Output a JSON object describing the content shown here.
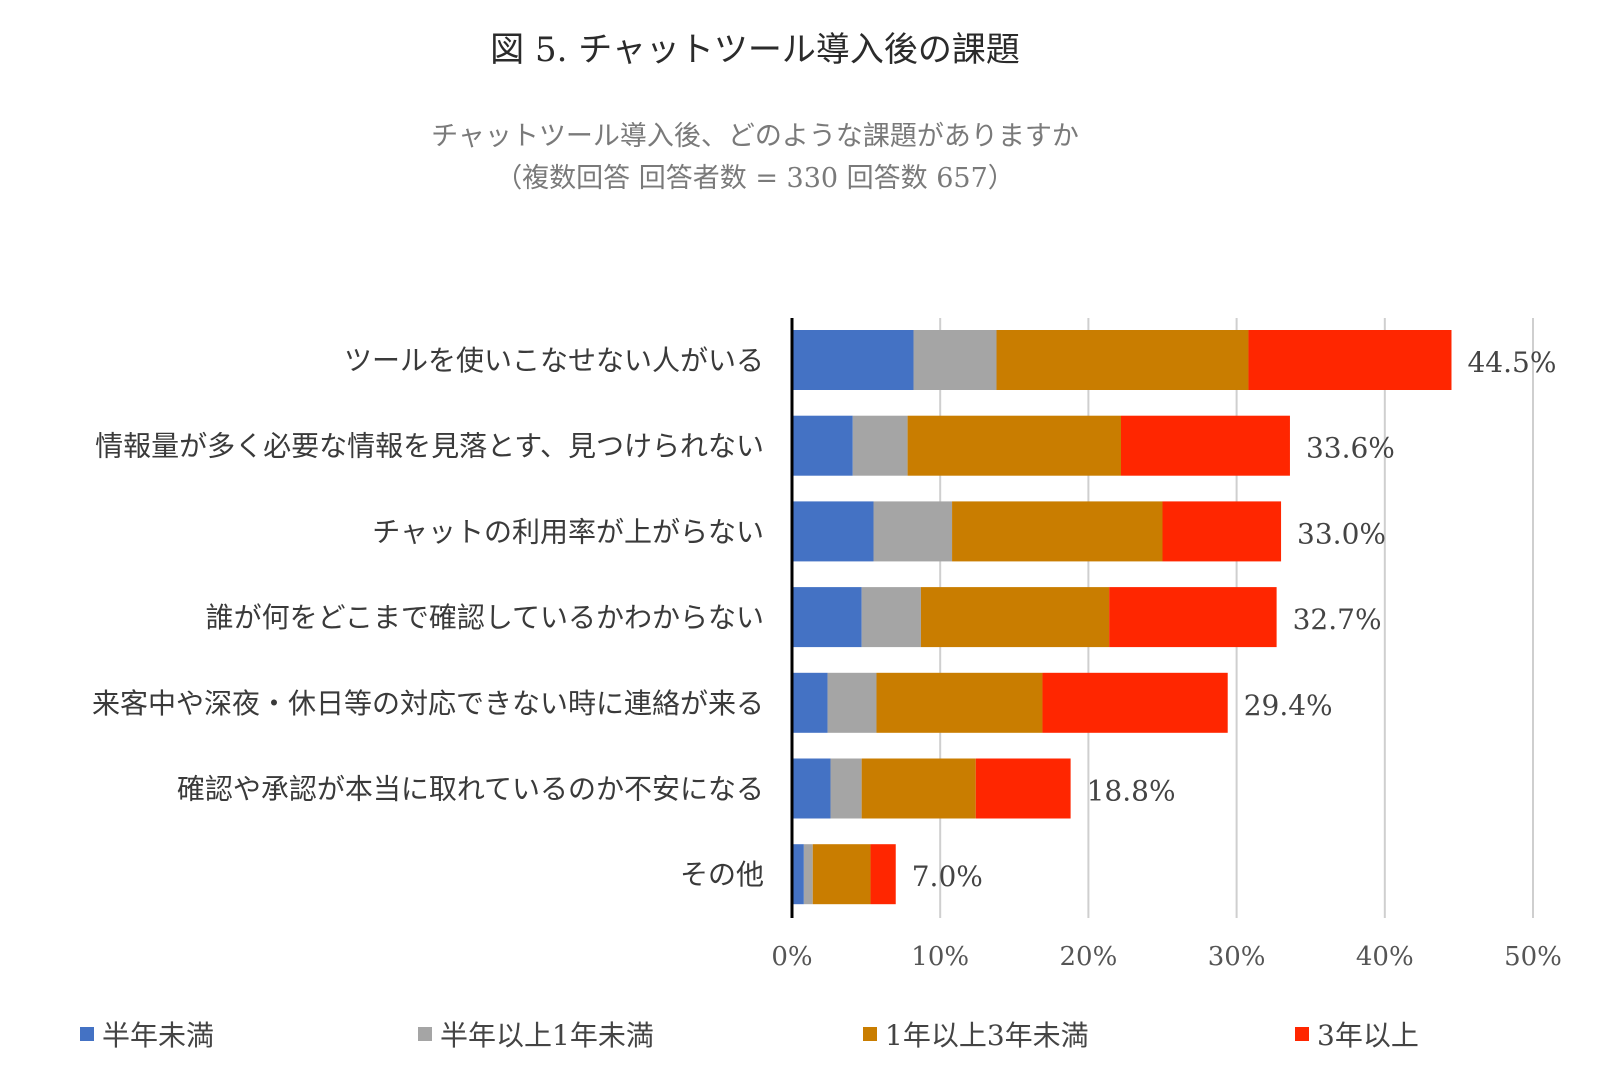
{
  "title": "図 5. チャットツール導入後の課題",
  "subtitle_lines": [
    "チャットツール導入後、どのような課題がありますか",
    "（複数回答 回答者数 = 330 回答数 657）"
  ],
  "chart_data": {
    "type": "bar",
    "orientation": "horizontal",
    "stacked": true,
    "categories": [
      "ツールを使いこなせない人がいる",
      "情報量が多く必要な情報を見落とす、見つけられない",
      "チャットの利用率が上がらない",
      "誰が何をどこまで確認しているかわからない",
      "来客中や深夜・休日等の対応できない時に連絡が来る",
      "確認や承認が本当に取れているのか不安になる",
      "その他"
    ],
    "series": [
      {
        "name": "半年未満",
        "color": "#4472C4",
        "values": [
          8.2,
          4.1,
          5.5,
          4.7,
          2.4,
          2.6,
          0.8
        ]
      },
      {
        "name": "半年以上1年未満",
        "color": "#A5A5A5",
        "values": [
          5.6,
          3.7,
          5.3,
          4.0,
          3.3,
          2.1,
          0.6
        ]
      },
      {
        "name": "1年以上3年未満",
        "color": "#C97D00",
        "values": [
          17.0,
          14.4,
          14.2,
          12.7,
          11.2,
          7.7,
          3.9
        ]
      },
      {
        "name": "3年以上",
        "color": "#FF2600",
        "values": [
          13.7,
          11.4,
          8.0,
          11.3,
          12.5,
          6.4,
          1.7
        ]
      }
    ],
    "totals": [
      "44.5%",
      "33.6%",
      "33.0%",
      "32.7%",
      "29.4%",
      "18.8%",
      "7.0%"
    ],
    "x_ticks": [
      "0%",
      "10%",
      "20%",
      "30%",
      "40%",
      "50%"
    ],
    "xlim": [
      0,
      50
    ],
    "grid": true,
    "legend_position": "bottom"
  }
}
